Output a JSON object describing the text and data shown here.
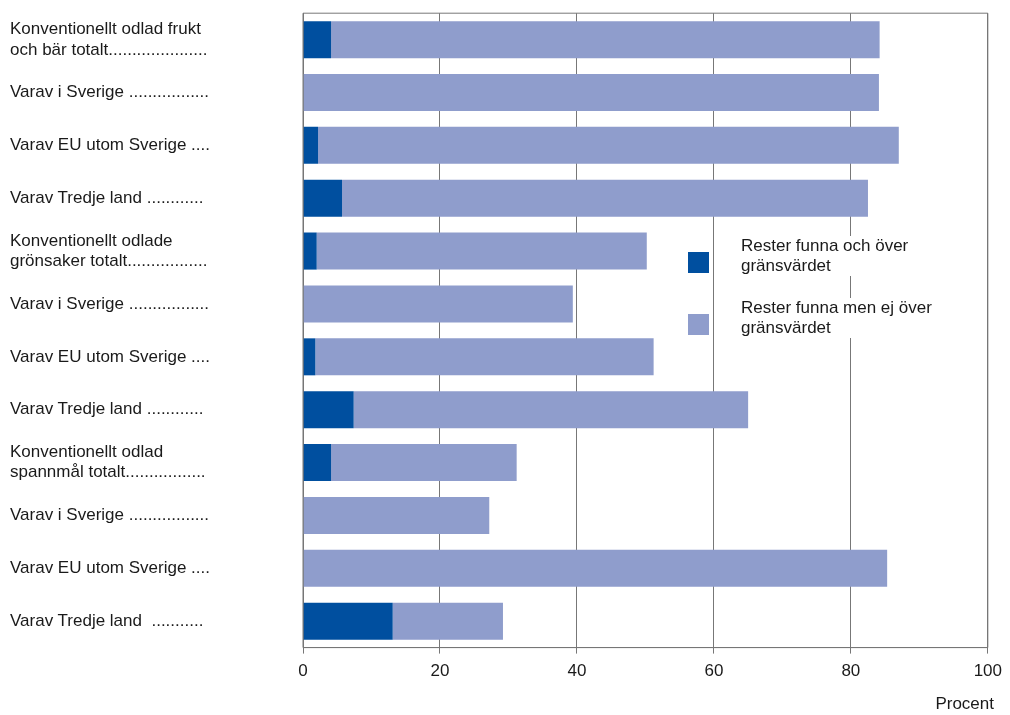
{
  "chart_data": {
    "type": "bar",
    "orientation": "horizontal",
    "stacked": true,
    "xlabel": "Procent",
    "categories": [
      "Konventionellt odlad frukt\noch bär totalt.....................",
      "Varav i Sverige .................",
      "Varav EU utom Sverige ....",
      "Varav Tredje land ............",
      "Konventionellt odlade\ngrönsaker totalt.................",
      "Varav i Sverige .................",
      "Varav EU utom Sverige ....",
      "Varav Tredje land ............",
      "Konventionellt odlad\nspannmål totalt.................",
      "Varav i Sverige .................",
      "Varav EU utom Sverige ....",
      "Varav Tredje land  ..........."
    ],
    "series": [
      {
        "name": "Rester funna och över gränsvärdet",
        "color": "#004f9f",
        "values": [
          4.1,
          0,
          2.2,
          5.7,
          2.0,
          0,
          1.8,
          7.4,
          4.1,
          0,
          0,
          13.1
        ]
      },
      {
        "name": "Rester funna men ej över gränsvärdet",
        "color": "#8f9dcc",
        "values": [
          80.1,
          84.1,
          84.8,
          76.8,
          48.2,
          39.4,
          49.4,
          57.6,
          27.1,
          27.2,
          85.3,
          16.1
        ]
      }
    ],
    "xlim": [
      0,
      100
    ],
    "xticks": [
      0,
      20,
      40,
      60,
      80,
      100
    ],
    "grid": "x",
    "legend": "right"
  }
}
